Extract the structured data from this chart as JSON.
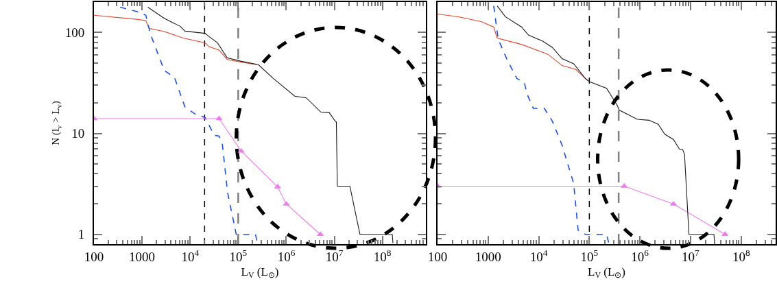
{
  "chart_data": [
    {
      "type": "line",
      "xlabel": "L$_{V}$ (L$_{⊙}$)",
      "ylabel": "N (l$_{v}$ > L$_{v}$)",
      "log": "xy",
      "grid": false,
      "xlim": [
        100,
        800000000
      ],
      "xticks": [
        100,
        1000,
        {
          "value": 10000,
          "label": "10$^{4}$"
        },
        {
          "value": 100000,
          "label": "10$^{5}$"
        },
        {
          "value": 1000000,
          "label": "10$^{6}$"
        },
        {
          "value": 10000000,
          "label": "10$^{7}$"
        },
        {
          "value": 100000000,
          "label": "10$^{8}$"
        }
      ],
      "ylim": [
        0.8,
        200
      ],
      "yticks": [
        1,
        10,
        100
      ],
      "series": [
        {
          "color": "#e8442a",
          "x": [
            100,
            780,
            1200,
            1400,
            2900,
            7200,
            20400,
            25000,
            40000,
            59000,
            112000,
            240000
          ],
          "values": [
            148,
            135,
            131,
            110,
            102,
            88,
            79,
            72,
            67,
            54,
            51,
            48
          ]
        },
        {
          "color": "#1a4fff",
          "line_style": "dashed",
          "x": [
            350,
            910,
            1200,
            1500,
            2900,
            4700,
            7800,
            12600,
            20400,
            31600,
            40000,
            47000,
            60000,
            91000,
            229000,
            251000
          ],
          "values": [
            178,
            158,
            148,
            96,
            42,
            36,
            18.3,
            15.6,
            14.4,
            9.6,
            9.4,
            7.7,
            2.6,
            1.0,
            1.0,
            0.8
          ]
        },
        {
          "color": "#f07af0",
          "marker": "triangle",
          "x": [
            100,
            40000,
            115000,
            660000,
            1000000,
            5100000
          ],
          "values": [
            14,
            14,
            6.7,
            2.95,
            2.0,
            1.0
          ]
        },
        {
          "color": "#1a1a1a",
          "x": [
            1320,
            2900,
            6200,
            7800,
            20400,
            24000,
            37000,
            59000,
            112000,
            263000,
            537000,
            1500000,
            2600000,
            5200000,
            7800000,
            10200000,
            11000000,
            11500000,
            21000000,
            34000000,
            160000000,
            165000000
          ],
          "values": [
            178,
            138,
            115,
            103,
            98,
            92,
            79,
            56,
            52,
            48,
            35,
            23.4,
            22.5,
            16.3,
            16.1,
            13.4,
            13,
            3,
            3,
            1,
            1,
            0.82
          ]
        }
      ],
      "ref_lines": [
        {
          "axis": "x",
          "value": 20000,
          "color": "#000000",
          "line_style": "dashed"
        },
        {
          "axis": "x",
          "value": 100000,
          "color": "#808080",
          "line_style": "dashed"
        }
      ]
    },
    {
      "type": "line",
      "xlabel": "L$_{V}$ (L$_{⊙}$)",
      "log": "xy",
      "grid": false,
      "tick_labels": "x",
      "xlim": [
        100,
        480000000
      ],
      "xticks": [
        100,
        1000,
        {
          "value": 10000,
          "label": "10$^{4}$"
        },
        {
          "value": 100000,
          "label": "10$^{5}$"
        },
        {
          "value": 1000000,
          "label": "10$^{6}$"
        },
        {
          "value": 10000000,
          "label": "10$^{7}$"
        },
        {
          "value": 100000000,
          "label": "10$^{8}$"
        }
      ],
      "ylim": [
        0.8,
        200
      ],
      "yticks": [
        1,
        10,
        100
      ],
      "series": [
        {
          "color": "#e8442a",
          "x": [
            100,
            260,
            730,
            1290,
            1510,
            4600,
            15000,
            29000,
            54000,
            95000
          ],
          "values": [
            152,
            143,
            128,
            113,
            88,
            76,
            61,
            47,
            43,
            33
          ]
        },
        {
          "color": "#1a4fff",
          "line_style": "dashed",
          "x": [
            1290,
            1580,
            2400,
            3700,
            5200,
            5800,
            7800,
            12900,
            18600,
            29000,
            49000,
            60000,
            83000,
            219000,
            245000
          ],
          "values": [
            183,
            86,
            53,
            35,
            32,
            25,
            17.7,
            17.7,
            13.2,
            7.6,
            3.2,
            1.1,
            1.0,
            1.0,
            0.8
          ]
        },
        {
          "color": "#f07af0",
          "marker": "triangle",
          "x": [
            100,
            490000,
            4600000,
            48000000
          ],
          "values": [
            3,
            3,
            2,
            1
          ]
        },
        {
          "color": "#1a1a1a",
          "x": [
            1510,
            2190,
            4600,
            6300,
            12000,
            18600,
            29000,
            49000,
            83000,
            102000,
            219000,
            355000,
            390000,
            890000,
            1510000,
            2300000,
            3100000,
            4600000,
            6000000,
            7000000,
            7600000,
            9300000,
            11000000,
            29000000,
            30000000
          ],
          "values": [
            183,
            143,
            113,
            94,
            82,
            71,
            55,
            49,
            35,
            32.5,
            28,
            19,
            17,
            13.8,
            13.5,
            12.3,
            9.8,
            8.7,
            7.0,
            6.9,
            6.2,
            1.0,
            1.0,
            1.0,
            0.8
          ]
        }
      ],
      "ref_lines": [
        {
          "axis": "x",
          "value": 100000,
          "color": "#000000",
          "line_style": "dashed"
        },
        {
          "axis": "x",
          "value": 380000,
          "color": "#808080",
          "line_style": "dashed"
        }
      ]
    }
  ]
}
